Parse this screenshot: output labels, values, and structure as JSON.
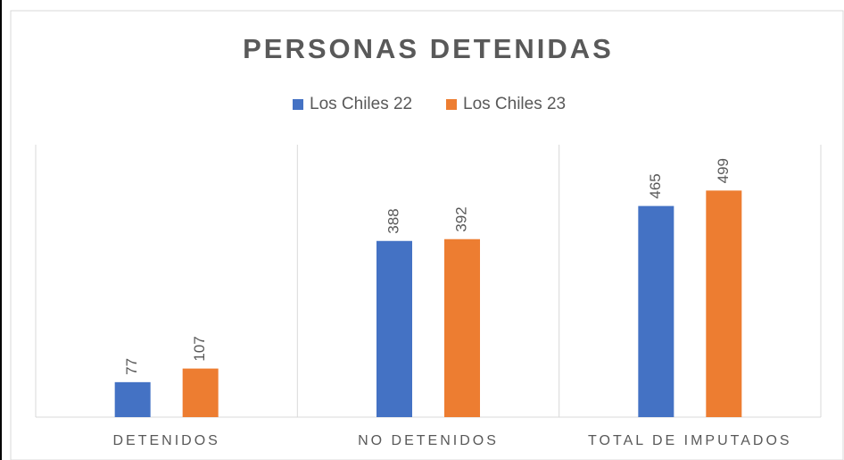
{
  "chart_data": {
    "type": "bar",
    "title": "PERSONAS DETENIDAS",
    "categories": [
      "DETENIDOS",
      "NO DETENIDOS",
      "TOTAL DE IMPUTADOS"
    ],
    "series": [
      {
        "name": "Los Chiles 22",
        "color": "#4472c4",
        "values": [
          77,
          388,
          465
        ]
      },
      {
        "name": "Los Chiles 23",
        "color": "#ed7d31",
        "values": [
          107,
          392,
          499
        ]
      }
    ],
    "ylim": [
      0,
      600
    ],
    "legend": "top"
  }
}
